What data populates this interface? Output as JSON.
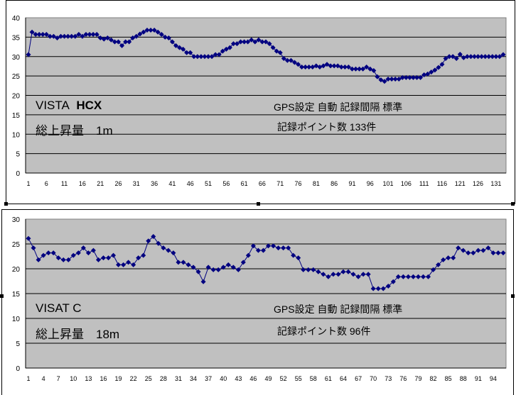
{
  "colors": {
    "plot_bg": "#c0c0c0",
    "series": "#000080",
    "grid": "#000000"
  },
  "chart_data": [
    {
      "type": "line",
      "marker": "diamond",
      "ylim": [
        0,
        40
      ],
      "yticks": [
        0,
        5,
        10,
        15,
        20,
        25,
        30,
        35,
        40
      ],
      "grid": true,
      "xtick_step": 5,
      "values": [
        30.5,
        36.3,
        35.7,
        35.7,
        35.7,
        35.7,
        35.2,
        35.2,
        34.8,
        35.2,
        35.2,
        35.2,
        35.2,
        35.2,
        35.7,
        35.2,
        35.7,
        35.7,
        35.7,
        35.7,
        34.8,
        34.5,
        34.8,
        34.3,
        33.8,
        33.8,
        32.8,
        33.8,
        33.8,
        34.8,
        35.2,
        35.8,
        36.3,
        36.8,
        36.8,
        36.8,
        36.3,
        35.7,
        35.0,
        34.8,
        33.8,
        32.8,
        32.3,
        31.9,
        31.0,
        31.0,
        30.0,
        30.0,
        30.0,
        30.0,
        30.0,
        30.0,
        30.5,
        30.5,
        31.4,
        31.9,
        32.3,
        33.3,
        33.3,
        33.8,
        33.8,
        33.8,
        34.3,
        33.8,
        34.3,
        33.8,
        33.8,
        33.3,
        32.3,
        31.4,
        31.0,
        29.5,
        29.0,
        29.0,
        28.5,
        28.0,
        27.3,
        27.3,
        27.3,
        27.3,
        27.6,
        27.3,
        27.6,
        28.0,
        27.6,
        27.6,
        27.6,
        27.3,
        27.3,
        27.3,
        26.8,
        26.8,
        26.8,
        26.8,
        27.3,
        26.8,
        26.4,
        24.8,
        24.0,
        23.6,
        24.2,
        24.2,
        24.2,
        24.2,
        24.6,
        24.6,
        24.6,
        24.6,
        24.6,
        24.6,
        25.3,
        25.5,
        26.0,
        26.5,
        27.2,
        28.0,
        29.5,
        30.0,
        30.0,
        29.5,
        30.6,
        29.7,
        30.0,
        30.0,
        30.0,
        30.0,
        30.0,
        30.0,
        30.0,
        30.0,
        30.0,
        30.0,
        30.5
      ],
      "annotations": {
        "device_name": "VISTA",
        "device_model": "HCX",
        "ascent": "総上昇量　1m",
        "gps": "GPS設定  自動  記録間隔  標準",
        "points": "記録ポイント数  133件"
      }
    },
    {
      "type": "line",
      "marker": "diamond",
      "ylim": [
        0,
        30
      ],
      "yticks": [
        0,
        5,
        10,
        15,
        20,
        25,
        30
      ],
      "grid": true,
      "xtick_step": 3,
      "values": [
        26.1,
        24.2,
        21.8,
        22.7,
        23.2,
        23.2,
        22.2,
        21.8,
        21.8,
        22.7,
        23.2,
        24.2,
        23.2,
        23.7,
        21.8,
        22.2,
        22.2,
        22.7,
        20.8,
        20.8,
        21.3,
        20.8,
        22.2,
        22.7,
        25.6,
        26.5,
        25.1,
        24.2,
        23.7,
        23.2,
        21.3,
        21.3,
        20.8,
        20.3,
        19.4,
        17.4,
        20.3,
        19.8,
        19.8,
        20.3,
        20.8,
        20.3,
        19.8,
        21.3,
        22.7,
        24.6,
        23.7,
        23.7,
        24.6,
        24.6,
        24.2,
        24.2,
        24.2,
        22.7,
        22.2,
        19.8,
        19.8,
        19.8,
        19.4,
        18.9,
        18.4,
        18.9,
        18.9,
        19.4,
        19.4,
        18.9,
        18.4,
        18.9,
        18.9,
        16.0,
        16.0,
        16.0,
        16.5,
        17.4,
        18.4,
        18.4,
        18.4,
        18.4,
        18.4,
        18.4,
        18.4,
        19.8,
        20.8,
        21.8,
        22.2,
        22.2,
        24.2,
        23.7,
        23.2,
        23.2,
        23.7,
        23.7,
        24.2,
        23.2,
        23.2,
        23.2
      ],
      "annotations": {
        "device_name": "VISAT  C",
        "ascent": "総上昇量　18m",
        "gps": "GPS設定  自動  記録間隔  標準",
        "points": "記録ポイント数  96件"
      }
    }
  ]
}
